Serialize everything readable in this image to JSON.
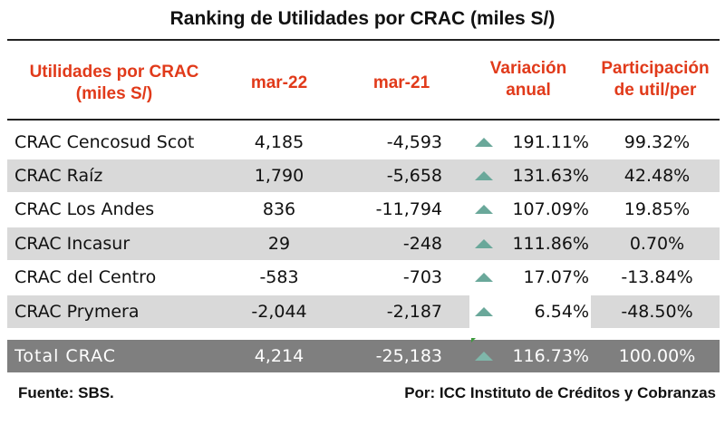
{
  "title": "Ranking de Utilidades por CRAC (miles S/)",
  "headers": {
    "name_line1": "Utilidades por CRAC",
    "name_line2": "(miles S/)",
    "mar22": "mar-22",
    "mar21": "mar-21",
    "var_line1": "Variación",
    "var_line2": "anual",
    "part_line1": "Participación",
    "part_line2": "de util/per"
  },
  "rows": [
    {
      "name": "CRAC Cencosud Scot",
      "mar22": "4,185",
      "mar21": "-4,593",
      "variacion": "191.11%",
      "participacion": "99.32%"
    },
    {
      "name": "CRAC Raíz",
      "mar22": "1,790",
      "mar21": "-5,658",
      "variacion": "131.63%",
      "participacion": "42.48%"
    },
    {
      "name": "CRAC Los Andes",
      "mar22": "836",
      "mar21": "-11,794",
      "variacion": "107.09%",
      "participacion": "19.85%"
    },
    {
      "name": "CRAC Incasur",
      "mar22": "29",
      "mar21": "-248",
      "variacion": "111.86%",
      "participacion": "0.70%"
    },
    {
      "name": "CRAC del Centro",
      "mar22": "-583",
      "mar21": "-703",
      "variacion": "17.07%",
      "participacion": "-13.84%"
    },
    {
      "name": "CRAC Prymera",
      "mar22": "-2,044",
      "mar21": "-2,187",
      "variacion": "6.54%",
      "participacion": "-48.50%"
    }
  ],
  "total": {
    "name": "Total CRAC",
    "mar22": "4,214",
    "mar21": "-25,183",
    "variacion": "116.73%",
    "participacion": "100.00%"
  },
  "trend_icon": "up-triangle-icon",
  "colors": {
    "header_text": "#e13a1a",
    "shaded_row": "#d9d9d9",
    "total_row": "#7f7f7f",
    "arrow": "#6aa89a"
  },
  "footer": {
    "source": "Fuente: SBS.",
    "author": "Por: ICC Instituto de Créditos y Cobranzas"
  }
}
